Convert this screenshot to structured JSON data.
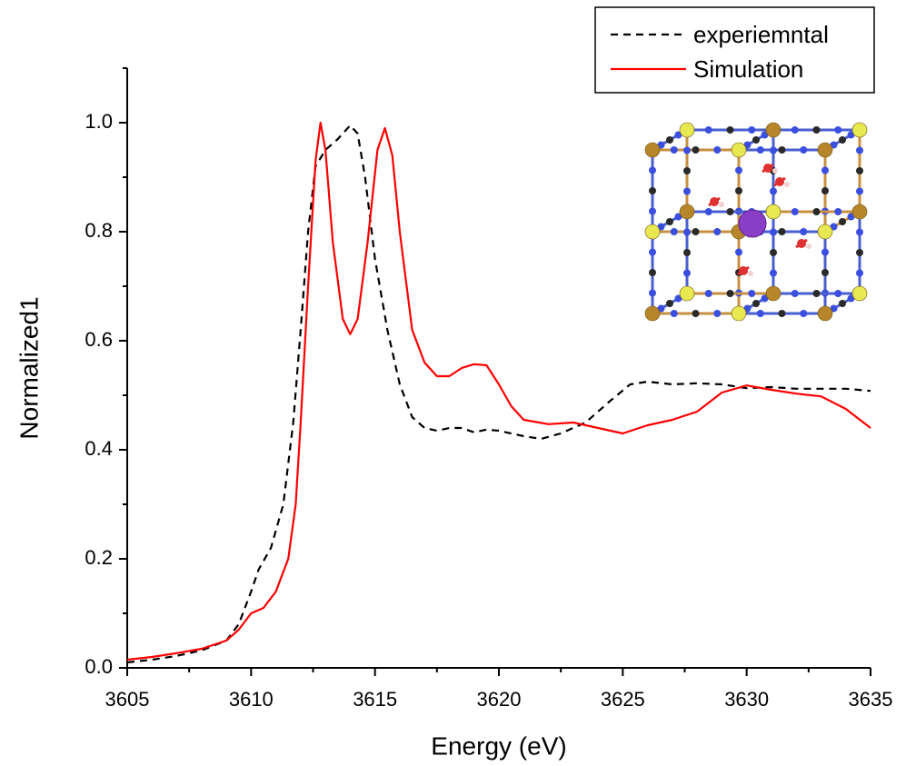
{
  "chart_data": {
    "type": "line",
    "xlabel": "Energy (eV)",
    "ylabel": "Normalized1",
    "xlim": [
      3605,
      3635
    ],
    "xticks": [
      3605,
      3610,
      3615,
      3620,
      3625,
      3630,
      3635
    ],
    "ylim": [
      0,
      1.1
    ],
    "yticks": [
      {
        "value": 0,
        "label": "0.0"
      },
      0.2,
      0.4,
      0.6,
      0.8,
      {
        "value": 1,
        "label": "1.0"
      }
    ],
    "legend": "top-right",
    "series": [
      {
        "name": "experiemntal",
        "color": "#000000",
        "style": "dashed",
        "x": [
          3605,
          3606,
          3607,
          3608,
          3609,
          3609.5,
          3610,
          3610.3,
          3610.8,
          3611.3,
          3611.7,
          3612,
          3612.3,
          3612.6,
          3613,
          3613.5,
          3614,
          3614.3,
          3614.6,
          3615,
          3615.5,
          3616,
          3616.5,
          3617,
          3617.5,
          3618,
          3618.5,
          3619,
          3619.5,
          3620,
          3621,
          3621.7,
          3622.5,
          3623.5,
          3624.5,
          3625.3,
          3626,
          3627,
          3628,
          3629,
          3630,
          3631,
          3632,
          3633,
          3634,
          3635
        ],
        "values": [
          0.01,
          0.015,
          0.022,
          0.032,
          0.05,
          0.08,
          0.14,
          0.18,
          0.22,
          0.3,
          0.45,
          0.62,
          0.8,
          0.92,
          0.95,
          0.97,
          0.995,
          0.98,
          0.9,
          0.75,
          0.62,
          0.52,
          0.46,
          0.44,
          0.435,
          0.44,
          0.44,
          0.432,
          0.437,
          0.435,
          0.425,
          0.42,
          0.43,
          0.45,
          0.49,
          0.52,
          0.525,
          0.52,
          0.522,
          0.52,
          0.513,
          0.515,
          0.512,
          0.512,
          0.512,
          0.508
        ]
      },
      {
        "name": "Simulation",
        "color": "#ff0000",
        "style": "solid",
        "x": [
          3605,
          3606,
          3607,
          3608,
          3609,
          3609.5,
          3610,
          3610.5,
          3611,
          3611.5,
          3611.8,
          3612,
          3612.3,
          3612.6,
          3612.8,
          3613,
          3613.3,
          3613.7,
          3614,
          3614.3,
          3614.7,
          3615.1,
          3615.4,
          3615.7,
          3616,
          3616.5,
          3617,
          3617.5,
          3618,
          3618.5,
          3619,
          3619.5,
          3620,
          3620.5,
          3621,
          3622,
          3623,
          3624,
          3625,
          3626,
          3627,
          3628,
          3629,
          3630,
          3631,
          3632,
          3633,
          3634,
          3635
        ],
        "values": [
          0.015,
          0.02,
          0.027,
          0.035,
          0.05,
          0.07,
          0.1,
          0.11,
          0.14,
          0.2,
          0.3,
          0.45,
          0.7,
          0.93,
          1.0,
          0.95,
          0.78,
          0.64,
          0.612,
          0.64,
          0.78,
          0.95,
          0.99,
          0.94,
          0.8,
          0.62,
          0.56,
          0.535,
          0.535,
          0.55,
          0.557,
          0.555,
          0.52,
          0.48,
          0.455,
          0.447,
          0.45,
          0.44,
          0.43,
          0.445,
          0.455,
          0.47,
          0.505,
          0.518,
          0.51,
          0.503,
          0.498,
          0.475,
          0.44
        ]
      }
    ]
  }
}
